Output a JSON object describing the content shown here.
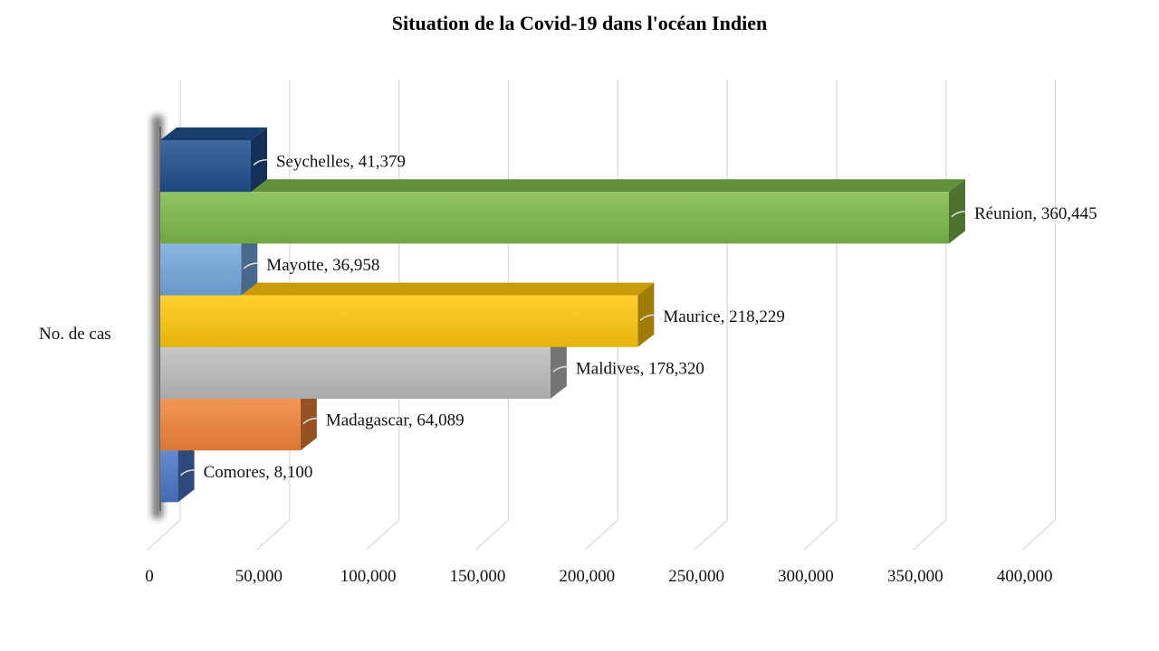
{
  "chart_data": {
    "type": "bar",
    "orientation": "horizontal",
    "style": "3d-clustered",
    "title": "Situation de la Covid-19 dans l'océan Indien",
    "category": "No. de cas",
    "xlim": [
      0,
      400000
    ],
    "xticks": [
      "0",
      "50,000",
      "100,000",
      "150,000",
      "200,000",
      "250,000",
      "300,000",
      "350,000",
      "400,000"
    ],
    "grid": true,
    "legend": "none",
    "series": [
      {
        "name": "Seychelles",
        "value": 41379,
        "label": "Seychelles, 41,379",
        "color": "#1f4f8f"
      },
      {
        "name": "Réunion",
        "value": 360445,
        "label": "Réunion, 360,445",
        "color": "#7cb94a"
      },
      {
        "name": "Mayotte",
        "value": 36958,
        "label": "Mayotte, 36,958",
        "color": "#74a9de"
      },
      {
        "name": "Maurice",
        "value": 218229,
        "label": "Maurice, 218,229",
        "color": "#ffc80a"
      },
      {
        "name": "Maldives",
        "value": 178320,
        "label": "Maldives, 178,320",
        "color": "#bdbdbd"
      },
      {
        "name": "Madagascar",
        "value": 64089,
        "label": "Madagascar, 64,089",
        "color": "#f28438"
      },
      {
        "name": "Comores",
        "value": 8100,
        "label": "Comores, 8,100",
        "color": "#4a76c6"
      }
    ]
  }
}
